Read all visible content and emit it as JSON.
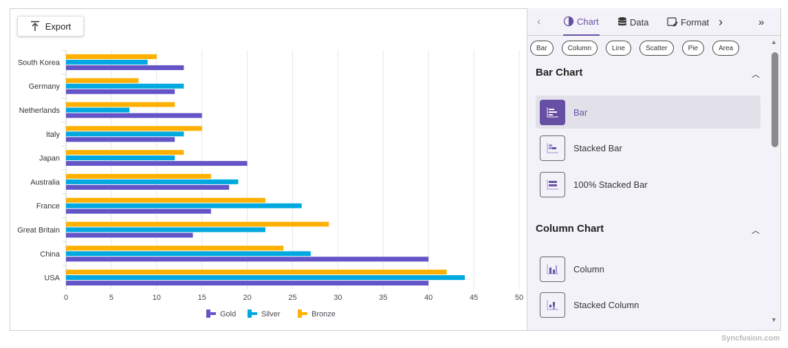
{
  "toolbar": {
    "export_label": "Export"
  },
  "panel": {
    "tabs": [
      {
        "label": "Chart",
        "icon": "pie-chart-icon"
      },
      {
        "label": "Data",
        "icon": "database-icon"
      },
      {
        "label": "Format",
        "icon": "format-edit-icon"
      }
    ],
    "chips": [
      "Bar",
      "Column",
      "Line",
      "Scatter",
      "Pie",
      "Area"
    ],
    "sections": [
      {
        "title": "Bar Chart",
        "items": [
          "Bar",
          "Stacked Bar",
          "100% Stacked Bar"
        ]
      },
      {
        "title": "Column Chart",
        "items": [
          "Column",
          "Stacked Column"
        ]
      }
    ],
    "selected": "Bar"
  },
  "watermark": "Syncfusion.com",
  "chart_data": {
    "type": "bar",
    "orientation": "horizontal",
    "categories": [
      "South Korea",
      "Germany",
      "Netherlands",
      "Italy",
      "Japan",
      "Australia",
      "France",
      "Great Britain",
      "China",
      "USA"
    ],
    "series": [
      {
        "name": "Gold",
        "color": "#6355c7",
        "values": [
          13,
          12,
          15,
          12,
          20,
          18,
          16,
          14,
          40,
          40
        ]
      },
      {
        "name": "Silver",
        "color": "#00a8e0",
        "values": [
          9,
          13,
          7,
          13,
          12,
          19,
          26,
          22,
          27,
          44
        ]
      },
      {
        "name": "Bronze",
        "color": "#ffb000",
        "values": [
          10,
          8,
          12,
          15,
          13,
          16,
          22,
          29,
          24,
          42
        ]
      }
    ],
    "xlim": [
      0,
      50
    ],
    "xticks": [
      "0",
      "5",
      "10",
      "15",
      "20",
      "25",
      "30",
      "35",
      "40",
      "45",
      "50"
    ],
    "grid": true,
    "legend": "bottom"
  }
}
